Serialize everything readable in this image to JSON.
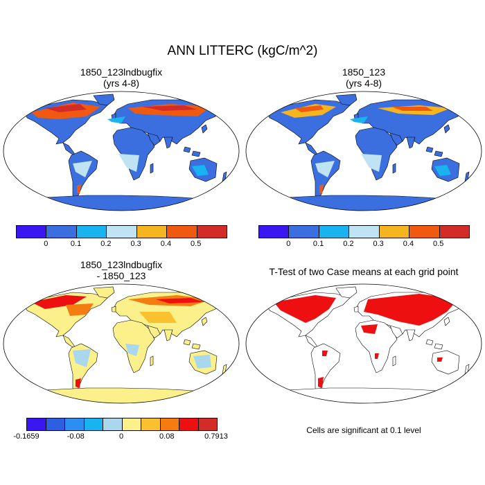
{
  "title": "ANN LITTERC (kgC/m^2)",
  "panels": [
    {
      "title_line1": "1850_123lndbugfix",
      "title_line2": "(yrs 4-8)"
    },
    {
      "title_line1": "1850_123",
      "title_line2": "(yrs 4-8)"
    },
    {
      "title_line1": "1850_123lndbugfix",
      "title_line2": "- 1850_123"
    },
    {
      "title_line1": "T-Test of two Case means at each grid point",
      "title_line2": ""
    }
  ],
  "colorbar_abs": {
    "colors": [
      "#3a16f0",
      "#3b6fe0",
      "#19b4ef",
      "#bfe3f2",
      "#f5b520",
      "#f05a10",
      "#d22b28"
    ],
    "tick_labels": [
      "0",
      "0.1",
      "0.2",
      "0.3",
      "0.4",
      "0.5"
    ]
  },
  "colorbar_diff": {
    "colors": [
      "#3a16f0",
      "#2e5fe0",
      "#2a8ff0",
      "#19b4ef",
      "#a8d7ee",
      "#fbf08a",
      "#f9c12e",
      "#f57c10",
      "#ee0f10",
      "#d22b28"
    ],
    "tick_labels": [
      "-0.1659",
      "-0.08",
      "0",
      "0.08",
      "0.7913"
    ]
  },
  "significance_note": "Cells are significant at 0.1 level",
  "colors": {
    "land_abs": "#3b6fe0",
    "land_diff": "#fbf08a",
    "sig": "#ee0f10"
  }
}
